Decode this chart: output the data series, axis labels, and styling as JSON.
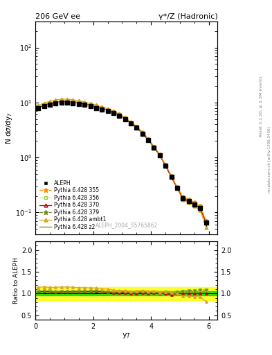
{
  "title_left": "206 GeV ee",
  "title_right": "γ*/Z (Hadronic)",
  "ylabel_main": "N dσ/dy$_T$",
  "ylabel_ratio": "Ratio to ALEPH",
  "xlabel": "y$_T$",
  "rivet_label": "Rivet 3.1.10, ≥ 2.3M events",
  "mcplots_label": "mcplots.cern.ch [arXiv:1306.3436]",
  "analysis_label": "ALEPH_2004_S5765862",
  "xlim": [
    0,
    6.3
  ],
  "ylim_main": [
    0.04,
    300
  ],
  "ylim_ratio": [
    0.4,
    2.2
  ],
  "x_data": [
    0.1,
    0.3,
    0.5,
    0.7,
    0.9,
    1.1,
    1.3,
    1.5,
    1.7,
    1.9,
    2.1,
    2.3,
    2.5,
    2.7,
    2.9,
    3.1,
    3.3,
    3.5,
    3.7,
    3.9,
    4.1,
    4.3,
    4.5,
    4.7,
    4.9,
    5.1,
    5.3,
    5.5,
    5.7,
    5.9
  ],
  "aleph_y": [
    7.8,
    8.5,
    9.2,
    9.8,
    10.0,
    10.0,
    9.8,
    9.5,
    9.0,
    8.5,
    8.0,
    7.5,
    7.0,
    6.5,
    5.8,
    5.0,
    4.2,
    3.5,
    2.7,
    2.1,
    1.5,
    1.1,
    0.7,
    0.45,
    0.28,
    0.18,
    0.16,
    0.14,
    0.12,
    0.065
  ],
  "aleph_yerr": [
    0.3,
    0.3,
    0.3,
    0.35,
    0.35,
    0.35,
    0.35,
    0.35,
    0.3,
    0.3,
    0.3,
    0.28,
    0.25,
    0.25,
    0.22,
    0.2,
    0.18,
    0.15,
    0.12,
    0.1,
    0.08,
    0.06,
    0.05,
    0.03,
    0.025,
    0.015,
    0.015,
    0.014,
    0.012,
    0.008
  ],
  "p355_y": [
    8.2,
    9.0,
    9.7,
    10.2,
    10.5,
    10.5,
    10.3,
    10.0,
    9.5,
    9.0,
    8.5,
    7.9,
    7.3,
    6.7,
    6.0,
    5.2,
    4.3,
    3.6,
    2.8,
    2.15,
    1.55,
    1.12,
    0.72,
    0.46,
    0.29,
    0.19,
    0.17,
    0.15,
    0.13,
    0.07
  ],
  "p356_y": [
    8.3,
    9.1,
    9.8,
    10.3,
    10.5,
    10.5,
    10.3,
    10.0,
    9.5,
    9.0,
    8.5,
    7.9,
    7.3,
    6.7,
    6.0,
    5.2,
    4.3,
    3.6,
    2.8,
    2.15,
    1.55,
    1.12,
    0.72,
    0.46,
    0.29,
    0.19,
    0.17,
    0.15,
    0.13,
    0.07
  ],
  "p370_y": [
    8.1,
    8.9,
    9.6,
    10.1,
    10.4,
    10.4,
    10.2,
    9.9,
    9.4,
    8.9,
    8.4,
    7.8,
    7.2,
    6.6,
    5.9,
    5.1,
    4.2,
    3.5,
    2.75,
    2.1,
    1.52,
    1.1,
    0.7,
    0.44,
    0.28,
    0.18,
    0.16,
    0.14,
    0.12,
    0.065
  ],
  "p379_y": [
    8.2,
    9.0,
    9.7,
    10.2,
    10.5,
    10.5,
    10.3,
    10.0,
    9.5,
    9.0,
    8.5,
    7.9,
    7.3,
    6.7,
    6.0,
    5.2,
    4.3,
    3.6,
    2.8,
    2.15,
    1.55,
    1.12,
    0.72,
    0.46,
    0.29,
    0.19,
    0.17,
    0.15,
    0.13,
    0.07
  ],
  "pambt1_y": [
    8.9,
    9.8,
    10.5,
    11.2,
    11.5,
    11.5,
    11.2,
    10.8,
    10.2,
    9.6,
    9.0,
    8.3,
    7.7,
    7.0,
    6.2,
    5.35,
    4.4,
    3.7,
    2.9,
    2.2,
    1.58,
    1.13,
    0.73,
    0.46,
    0.28,
    0.17,
    0.15,
    0.13,
    0.11,
    0.053
  ],
  "pz2_y": [
    8.1,
    8.9,
    9.6,
    10.1,
    10.4,
    10.4,
    10.2,
    9.9,
    9.4,
    8.9,
    8.4,
    7.8,
    7.2,
    6.6,
    5.9,
    5.1,
    4.2,
    3.5,
    2.75,
    2.1,
    1.52,
    1.1,
    0.7,
    0.44,
    0.28,
    0.18,
    0.16,
    0.14,
    0.12,
    0.065
  ],
  "colors": {
    "aleph": "#000000",
    "p355": "#FF8C00",
    "p356": "#9ACD32",
    "p370": "#C00000",
    "p379": "#6B8E23",
    "pambt1": "#DAA520",
    "pz2": "#808000"
  },
  "band_green_inner": 0.05,
  "band_yellow_outer": 0.15
}
